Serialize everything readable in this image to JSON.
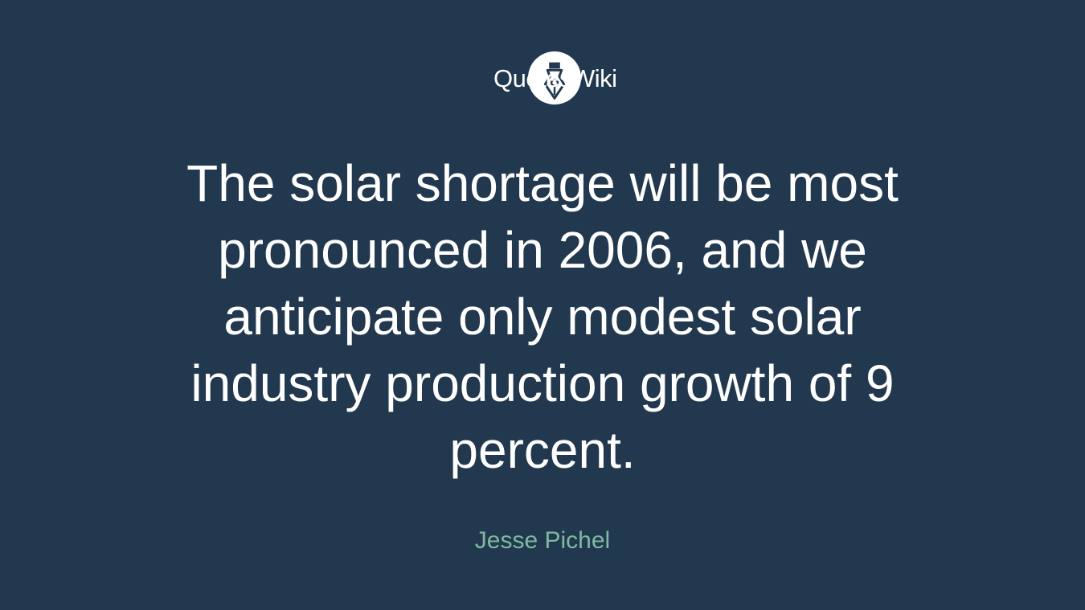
{
  "header": {
    "logo_text": "QuotesWiki"
  },
  "quote": {
    "lines": [
      "The solar shortage will be most",
      "pronounced in 2006, and we",
      "anticipate only modest solar",
      "industry production growth of 9",
      "percent."
    ]
  },
  "author": "Jesse Pichel"
}
